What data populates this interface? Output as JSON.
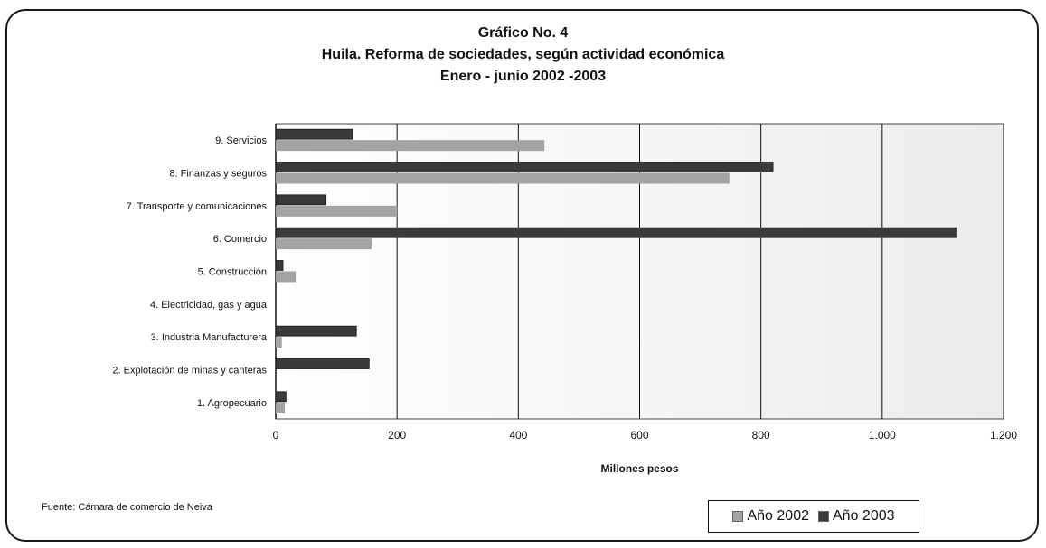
{
  "chart_data": {
    "type": "bar",
    "orientation": "horizontal",
    "title": "Gráfico No. 4",
    "subtitle": "Huila. Reforma de sociedades, según actividad económica",
    "period": "Enero - junio 2002 -2003",
    "xlabel": "Millones pesos",
    "ylabel": "",
    "xlim": [
      0,
      1200
    ],
    "xticks": [
      0,
      200,
      400,
      600,
      800,
      1000,
      1200
    ],
    "xtick_labels": [
      "0",
      "200",
      "400",
      "600",
      "800",
      "1.000",
      "1.200"
    ],
    "categories": [
      "9. Servicios",
      "8. Finanzas y seguros",
      "7. Transporte y comunicaciones",
      "6. Comercio",
      "5. Construcción",
      "4. Electricidad, gas y agua",
      "3. Industria Manufacturera",
      "2. Explotación de minas y canteras",
      "1. Agropecuario"
    ],
    "series": [
      {
        "name": "Año 2002",
        "color": "#a3a3a3",
        "values": [
          443,
          748,
          200,
          158,
          33,
          0,
          10,
          0,
          15
        ]
      },
      {
        "name": "Año 2003",
        "color": "#3a3a3a",
        "values": [
          127,
          820,
          83,
          1123,
          12,
          0,
          133,
          154,
          17
        ]
      }
    ],
    "grid": "vertical",
    "legend_position": "bottom-right"
  },
  "source_note": "Fuente:  Cámara de comercio de Neiva"
}
